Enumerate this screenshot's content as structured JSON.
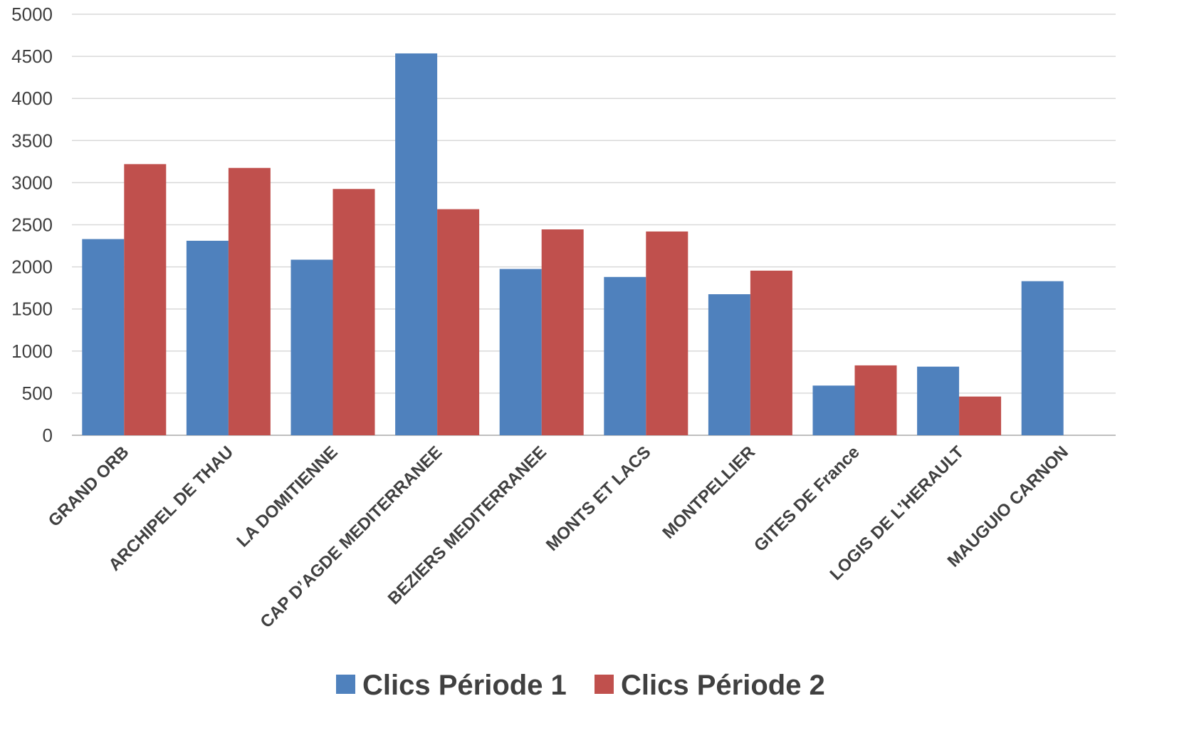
{
  "chart_data": {
    "type": "bar",
    "categories": [
      "GRAND ORB",
      "ARCHIPEL DE THAU",
      "LA DOMITIENNE",
      "CAP D’AGDE MEDITERRANEE",
      "BEZIERS MEDITERRANEE",
      "MONTS ET LACS",
      "MONTPELLIER",
      "GITES DE France",
      "LOGIS DE L’HERAULT",
      "MAUGUIO CARNON"
    ],
    "series": [
      {
        "name": "Clics Période 1",
        "color": "#4F81BD",
        "values": [
          2330,
          2310,
          2085,
          4535,
          1975,
          1880,
          1675,
          590,
          815,
          1830
        ]
      },
      {
        "name": "Clics Période 2",
        "color": "#C0504D",
        "values": [
          3220,
          3175,
          2925,
          2685,
          2445,
          2420,
          1955,
          830,
          460,
          null
        ]
      }
    ],
    "yticks": [
      0,
      500,
      1000,
      1500,
      2000,
      2500,
      3000,
      3500,
      4000,
      4500,
      5000
    ],
    "ylim": [
      0,
      5000
    ],
    "grid": true,
    "legend_position": "bottom"
  }
}
